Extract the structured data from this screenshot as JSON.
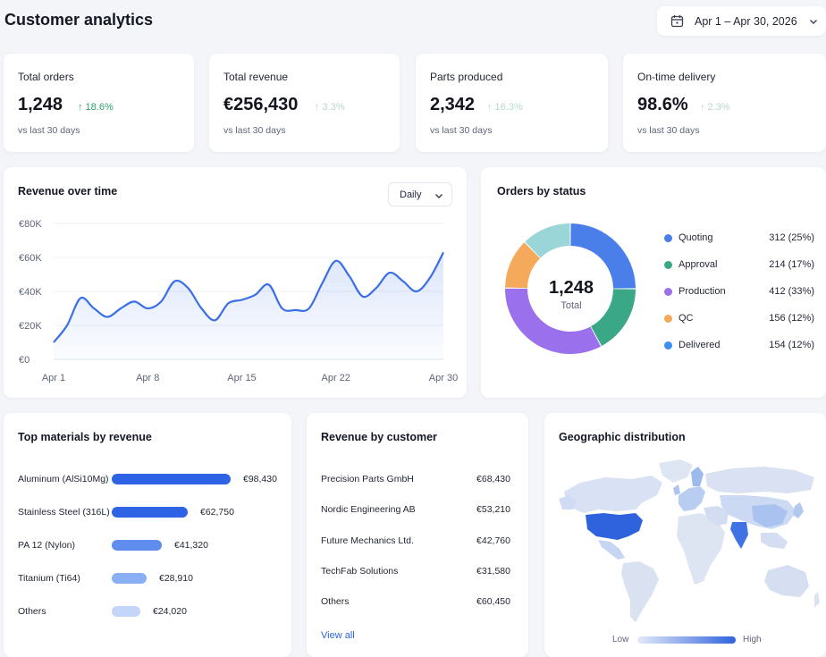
{
  "header": {
    "title": "Customer analytics",
    "date_range": "Apr 1 – Apr 30, 2026"
  },
  "kpis": [
    {
      "label": "Total orders",
      "value": "1,248",
      "delta": "↑ 18.6%",
      "sub": "vs last 30 days"
    },
    {
      "label": "Total revenue",
      "value": "€256,430",
      "delta": "↑ 3.3%",
      "sub": "vs last 30 days"
    },
    {
      "label": "Parts produced",
      "value": "2,342",
      "delta": "↑ 16.3%",
      "sub": "vs last 30 days"
    },
    {
      "label": "On-time delivery",
      "value": "98.6%",
      "delta": "↑ 2.3%",
      "sub": "vs last 30 days"
    }
  ],
  "revenue_card": {
    "title": "Revenue over time",
    "granularity": "Daily"
  },
  "status_card": {
    "title": "Orders by status",
    "center_value": "1,248",
    "center_label": "Total"
  },
  "materials_card": {
    "title": "Top materials by revenue"
  },
  "customers_card": {
    "title": "Revenue by customer",
    "rows": [
      {
        "name": "Precision Parts GmbH",
        "value": "€68,430"
      },
      {
        "name": "Nordic Engineering AB",
        "value": "€53,210"
      },
      {
        "name": "Future Mechanics Ltd.",
        "value": "€42,760"
      },
      {
        "name": "TechFab Solutions",
        "value": "€31,580"
      },
      {
        "name": "Others",
        "value": "€60,450"
      }
    ],
    "view_all": "View all"
  },
  "geo_card": {
    "title": "Geographic distribution",
    "legend_low": "Low",
    "legend_high": "High"
  },
  "colors": {
    "accent": "#3a6fe6",
    "positive": "#2ea36b",
    "quoting": "#4a7fea",
    "approval": "#3aa886",
    "production": "#9b70ec",
    "qc": "#f5a95a",
    "delivered": "#3c8ef0",
    "teal_segment": "#9ad5d8"
  },
  "icons": {
    "date_picker": "calendar-icon",
    "dropdown": "chevron-down-icon",
    "trend": "arrow-up-icon"
  },
  "chart_data": [
    {
      "type": "area",
      "title": "Revenue over time",
      "x": [
        "Apr 1",
        "Apr 2",
        "Apr 3",
        "Apr 4",
        "Apr 5",
        "Apr 6",
        "Apr 7",
        "Apr 8",
        "Apr 9",
        "Apr 10",
        "Apr 11",
        "Apr 12",
        "Apr 13",
        "Apr 14",
        "Apr 15",
        "Apr 16",
        "Apr 17",
        "Apr 18",
        "Apr 19",
        "Apr 20",
        "Apr 21",
        "Apr 22",
        "Apr 23",
        "Apr 24",
        "Apr 25",
        "Apr 26",
        "Apr 27",
        "Apr 28",
        "Apr 29",
        "Apr 30"
      ],
      "x_ticks": [
        "Apr 1",
        "Apr 8",
        "Apr 15",
        "Apr 22",
        "Apr 30"
      ],
      "values": [
        10000,
        20000,
        36000,
        30000,
        25000,
        30000,
        34000,
        30000,
        34000,
        46000,
        42000,
        30000,
        23000,
        33000,
        35000,
        38000,
        44000,
        30000,
        29000,
        30000,
        45000,
        58000,
        49000,
        37000,
        42000,
        51000,
        46000,
        40000,
        48000,
        63000
      ],
      "y_ticks": [
        "€0",
        "€20K",
        "€40K",
        "€60K",
        "€80K"
      ],
      "ylim": [
        0,
        80000
      ],
      "grid": true
    },
    {
      "type": "pie",
      "title": "Orders by status",
      "slices": [
        {
          "label": "Quoting",
          "value": 312,
          "display": "312 (25%)"
        },
        {
          "label": "Approval",
          "value": 214,
          "display": "214 (17%)"
        },
        {
          "label": "Production",
          "value": 412,
          "display": "412 (33%)"
        },
        {
          "label": "QC",
          "value": 156,
          "display": "156 (12%)"
        },
        {
          "label": "Delivered",
          "value": 154,
          "display": "154 (12%)"
        }
      ]
    },
    {
      "type": "bar",
      "title": "Top materials by revenue",
      "categories": [
        "Aluminum (AlSi10Mg)",
        "Stainless Steel (316L)",
        "PA 12 (Nylon)",
        "Titanium (Ti64)",
        "Others"
      ],
      "values": [
        98430,
        62750,
        41320,
        28910,
        24020
      ],
      "labels": [
        "€98,430",
        "€62,750",
        "€41,320",
        "€28,910",
        "€24,020"
      ]
    }
  ]
}
